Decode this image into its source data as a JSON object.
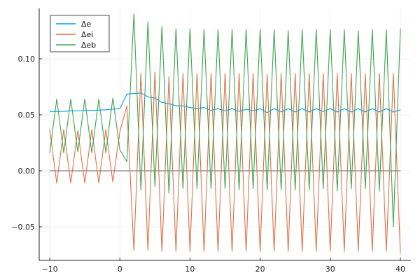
{
  "chart_data": {
    "type": "line",
    "title": "",
    "xlabel": "",
    "ylabel": "",
    "xlim": [
      -11.5,
      41.5
    ],
    "ylim": [
      -0.08,
      0.145
    ],
    "grid": true,
    "legend_position": "top-left",
    "xticks": [
      -10,
      0,
      10,
      20,
      30,
      40
    ],
    "xtick_labels": [
      "−10",
      "0",
      "10",
      "20",
      "30",
      "40"
    ],
    "yticks": [
      -0.05,
      0.0,
      0.05,
      0.1
    ],
    "ytick_labels": [
      "−0.05",
      "0.00",
      "0.05",
      "0.10"
    ],
    "x": [
      -10,
      -9,
      -8,
      -7,
      -6,
      -5,
      -4,
      -3,
      -2,
      -1,
      0,
      1,
      2,
      3,
      4,
      5,
      6,
      7,
      8,
      9,
      10,
      11,
      12,
      13,
      14,
      15,
      16,
      17,
      18,
      19,
      20,
      21,
      22,
      23,
      24,
      25,
      26,
      27,
      28,
      29,
      30,
      31,
      32,
      33,
      34,
      35,
      36,
      37,
      38,
      39,
      40
    ],
    "series": [
      {
        "name": "Δe",
        "color": "#009AFA",
        "values": [
          0.053,
          0.053,
          0.0531,
          0.0535,
          0.0535,
          0.0538,
          0.054,
          0.0542,
          0.0545,
          0.055,
          0.0555,
          0.0685,
          0.069,
          0.0695,
          0.066,
          0.065,
          0.061,
          0.06,
          0.058,
          0.058,
          0.0565,
          0.0555,
          0.0565,
          0.054,
          0.0555,
          0.0535,
          0.0555,
          0.053,
          0.055,
          0.0535,
          0.0555,
          0.052,
          0.0555,
          0.0525,
          0.0555,
          0.0525,
          0.0555,
          0.0525,
          0.0555,
          0.053,
          0.0555,
          0.0525,
          0.0555,
          0.0525,
          0.0555,
          0.0525,
          0.0555,
          0.0525,
          0.0555,
          0.0525,
          0.0545
        ]
      },
      {
        "name": "Δei",
        "color": "#E26F46",
        "values": [
          0.037,
          -0.011,
          0.037,
          -0.011,
          0.036,
          -0.011,
          0.037,
          -0.011,
          0.037,
          -0.01,
          0.035,
          0.058,
          -0.071,
          0.087,
          -0.071,
          0.088,
          -0.072,
          0.084,
          -0.072,
          0.087,
          -0.072,
          0.087,
          -0.072,
          0.087,
          -0.072,
          0.087,
          -0.072,
          0.087,
          -0.072,
          0.087,
          -0.072,
          0.086,
          -0.072,
          0.087,
          -0.072,
          0.087,
          -0.072,
          0.087,
          -0.072,
          0.087,
          -0.072,
          0.087,
          -0.072,
          0.087,
          -0.072,
          0.087,
          -0.072,
          0.087,
          -0.072,
          0.087,
          -0.074
        ]
      },
      {
        "name": "Δeb",
        "color": "#3EA44E",
        "values": [
          0.016,
          0.064,
          0.016,
          0.064,
          0.017,
          0.064,
          0.016,
          0.064,
          0.016,
          0.065,
          0.019,
          0.008,
          0.14,
          -0.017,
          0.133,
          -0.014,
          0.129,
          -0.02,
          0.127,
          -0.016,
          0.127,
          -0.016,
          0.126,
          -0.016,
          0.126,
          -0.016,
          0.126,
          -0.017,
          0.126,
          -0.016,
          0.126,
          -0.017,
          0.126,
          -0.017,
          0.125,
          -0.017,
          0.126,
          -0.017,
          0.126,
          -0.016,
          0.126,
          -0.018,
          0.126,
          -0.016,
          0.125,
          -0.016,
          0.126,
          -0.018,
          0.126,
          -0.05,
          0.127
        ]
      }
    ],
    "reference_line": {
      "y": 0.0,
      "color": "#7F7F7F"
    }
  }
}
